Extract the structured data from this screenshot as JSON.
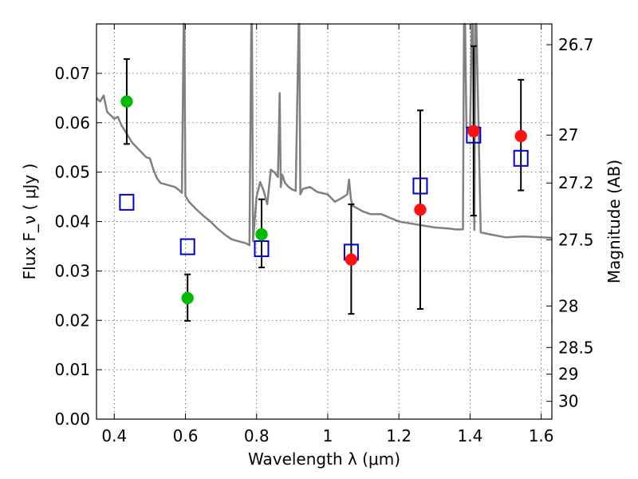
{
  "chart_data": {
    "type": "scatter",
    "xlabel": "Wavelength  λ (μm)",
    "ylabel": "Flux  F_ν  ( μJy )",
    "ylabel_right": "Magnitude (AB)",
    "xlim": [
      0.35,
      1.63
    ],
    "ylim": [
      0.0,
      0.08
    ],
    "x_ticks": [
      0.4,
      0.6,
      0.8,
      1.0,
      1.2,
      1.4,
      1.6
    ],
    "x_tick_labels": [
      "0.4",
      "0.6",
      "0.8",
      "1",
      "1.2",
      "1.4",
      "1.6"
    ],
    "y_ticks": [
      0.0,
      0.01,
      0.02,
      0.03,
      0.04,
      0.05,
      0.06,
      0.07
    ],
    "y_tick_labels": [
      "0.00",
      "0.01",
      "0.02",
      "0.03",
      "0.04",
      "0.05",
      "0.06",
      "0.07"
    ],
    "right_ticks": [
      {
        "label": "26.7",
        "flux": 0.0758
      },
      {
        "label": "27",
        "flux": 0.0575
      },
      {
        "label": "27.2",
        "flux": 0.0478
      },
      {
        "label": "27.5",
        "flux": 0.0363
      },
      {
        "label": "28",
        "flux": 0.0229
      },
      {
        "label": "28.5",
        "flux": 0.0145
      },
      {
        "label": "29",
        "flux": 0.0091
      },
      {
        "label": "30",
        "flux": 0.0036
      }
    ],
    "grid": true,
    "series": [
      {
        "marker": "circle",
        "color": "#00bb00",
        "points": [
          {
            "x": 0.435,
            "y": 0.0643,
            "yerr_low": 0.0557,
            "yerr_high": 0.0729
          },
          {
            "x": 0.606,
            "y": 0.0245,
            "yerr_low": 0.0199,
            "yerr_high": 0.0293
          },
          {
            "x": 0.814,
            "y": 0.0374,
            "yerr_low": 0.0307,
            "yerr_high": 0.0445
          }
        ]
      },
      {
        "marker": "circle",
        "color": "#ff1111",
        "points": [
          {
            "x": 1.066,
            "y": 0.0323,
            "yerr_low": 0.0213,
            "yerr_high": 0.0435
          },
          {
            "x": 1.26,
            "y": 0.0424,
            "yerr_low": 0.0223,
            "yerr_high": 0.0625
          },
          {
            "x": 1.41,
            "y": 0.0583,
            "yerr_low": 0.0412,
            "yerr_high": 0.0755
          },
          {
            "x": 1.543,
            "y": 0.0573,
            "yerr_low": 0.0463,
            "yerr_high": 0.0687
          }
        ]
      },
      {
        "marker": "open-square",
        "color": "#0000cc",
        "points": [
          {
            "x": 0.435,
            "y": 0.0439
          },
          {
            "x": 0.606,
            "y": 0.0349
          },
          {
            "x": 0.814,
            "y": 0.0345
          },
          {
            "x": 1.066,
            "y": 0.0338
          },
          {
            "x": 1.26,
            "y": 0.0472
          },
          {
            "x": 1.41,
            "y": 0.0575
          },
          {
            "x": 1.543,
            "y": 0.0528
          }
        ]
      },
      {
        "line": "model-spectrum",
        "color": "#808080",
        "x": [
          0.35,
          0.36,
          0.37,
          0.38,
          0.39,
          0.4,
          0.41,
          0.42,
          0.435,
          0.45,
          0.47,
          0.49,
          0.5,
          0.51,
          0.52,
          0.53,
          0.55,
          0.57,
          0.58,
          0.59,
          0.595,
          0.597,
          0.6,
          0.61,
          0.63,
          0.65,
          0.67,
          0.69,
          0.71,
          0.73,
          0.75,
          0.77,
          0.78,
          0.785,
          0.787,
          0.79,
          0.8,
          0.81,
          0.82,
          0.83,
          0.84,
          0.85,
          0.86,
          0.865,
          0.868,
          0.872,
          0.88,
          0.89,
          0.9,
          0.91,
          0.918,
          0.92,
          0.923,
          0.93,
          0.95,
          0.97,
          1.0,
          1.02,
          1.04,
          1.055,
          1.06,
          1.065,
          1.07,
          1.08,
          1.1,
          1.12,
          1.15,
          1.2,
          1.25,
          1.3,
          1.34,
          1.36,
          1.38,
          1.383,
          1.386,
          1.39,
          1.4,
          1.405,
          1.408,
          1.412,
          1.415,
          1.418,
          1.43,
          1.45,
          1.5,
          1.55,
          1.6,
          1.63
        ],
        "y": [
          0.065,
          0.0643,
          0.0655,
          0.0622,
          0.0615,
          0.0608,
          0.0612,
          0.0595,
          0.0578,
          0.056,
          0.0545,
          0.053,
          0.0528,
          0.0505,
          0.0488,
          0.0478,
          0.0474,
          0.047,
          0.0465,
          0.0458,
          0.08,
          0.08,
          0.0452,
          0.044,
          0.0425,
          0.0412,
          0.04,
          0.0386,
          0.0374,
          0.0364,
          0.036,
          0.0356,
          0.0352,
          0.08,
          0.08,
          0.036,
          0.045,
          0.048,
          0.0462,
          0.0435,
          0.0505,
          0.05,
          0.049,
          0.066,
          0.047,
          0.0495,
          0.0478,
          0.047,
          0.0465,
          0.0462,
          0.08,
          0.08,
          0.0455,
          0.0466,
          0.047,
          0.046,
          0.0455,
          0.044,
          0.0448,
          0.0455,
          0.0485,
          0.0445,
          0.0432,
          0.0428,
          0.042,
          0.0415,
          0.0415,
          0.04,
          0.0394,
          0.0388,
          0.0386,
          0.0384,
          0.0384,
          0.08,
          0.08,
          0.059,
          0.058,
          0.08,
          0.08,
          0.0383,
          0.08,
          0.08,
          0.0378,
          0.0375,
          0.0368,
          0.037,
          0.0368,
          0.0367
        ]
      }
    ]
  }
}
